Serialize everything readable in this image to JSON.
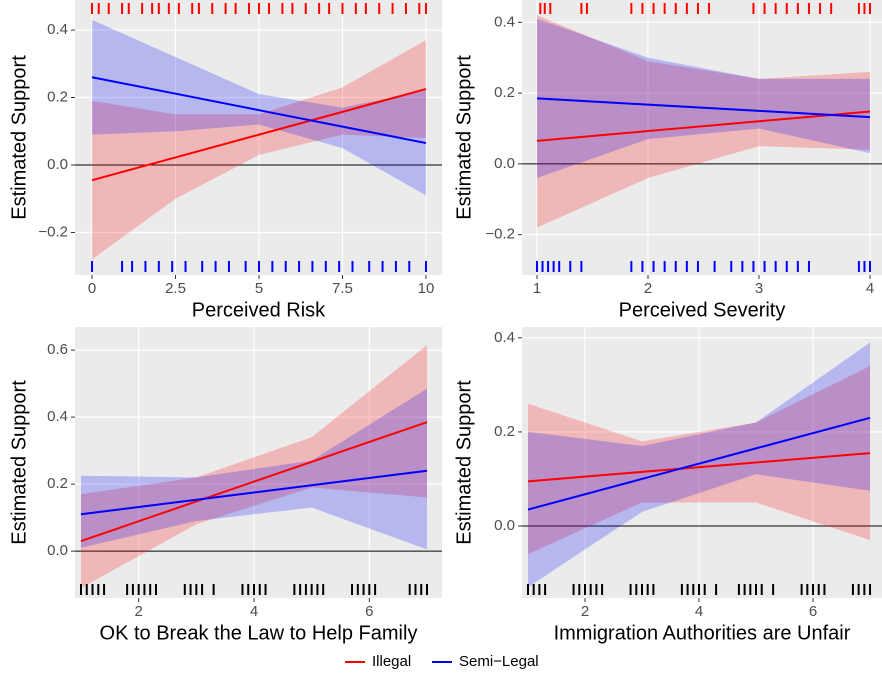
{
  "chart_data": [
    {
      "type": "line",
      "x_label": "Perceived Risk",
      "y_label": "Estimated Support",
      "x": [
        0,
        2.5,
        5,
        7.5,
        10
      ],
      "xlim": [
        -0.51,
        10.48
      ],
      "ylim": [
        -0.326,
        0.489
      ],
      "xticks": [
        0,
        2.5,
        5,
        7.5,
        10
      ],
      "yticks": [
        {
          "value": -0.2,
          "label": "−0.2"
        },
        {
          "value": 0,
          "label": "0.0"
        },
        0.2,
        0.4
      ],
      "hline": 0,
      "series": [
        {
          "name": "Illegal",
          "color": "#ff0000",
          "values": [
            -0.045,
            0.0225,
            0.09,
            0.1575,
            0.225
          ],
          "lower": [
            -0.28,
            -0.1,
            0.03,
            0.09,
            0.08
          ],
          "upper": [
            0.19,
            0.15,
            0.15,
            0.23,
            0.37
          ]
        },
        {
          "name": "Semi−Legal",
          "color": "#0000ff",
          "values": [
            0.26,
            0.2113,
            0.1625,
            0.1138,
            0.065
          ],
          "lower": [
            0.09,
            0.1,
            0.12,
            0.05,
            -0.09
          ],
          "upper": [
            0.43,
            0.32,
            0.21,
            0.17,
            0.22
          ]
        }
      ],
      "rugs": [
        {
          "position": "top",
          "color": "#ff0000",
          "x": [
            0,
            0.2,
            0.5,
            0.9,
            1.1,
            1.5,
            1.8,
            2.0,
            2.3,
            2.6,
            3.0,
            3.2,
            3.6,
            4.0,
            4.3,
            4.7,
            5.0,
            5.3,
            5.7,
            6.0,
            6.4,
            6.8,
            7.1,
            7.5,
            7.9,
            8.2,
            8.6,
            9.0,
            9.4,
            9.8,
            10
          ]
        },
        {
          "position": "bottom",
          "color": "#0000ff",
          "x": [
            0,
            0.9,
            1.2,
            1.6,
            2.0,
            2.4,
            2.8,
            3.3,
            3.7,
            4.1,
            4.6,
            5.0,
            5.4,
            5.8,
            6.2,
            6.6,
            7.0,
            7.4,
            7.8,
            8.3,
            8.7,
            9.1,
            9.5,
            10
          ]
        }
      ]
    },
    {
      "type": "line",
      "x_label": "Perceived Severity",
      "y_label": "Estimated Support",
      "x": [
        1,
        2,
        3,
        4
      ],
      "xlim": [
        0.865,
        4.108
      ],
      "ylim": [
        -0.314,
        0.463
      ],
      "xticks": [
        1,
        2,
        3,
        4
      ],
      "yticks": [
        {
          "value": -0.2,
          "label": "−0.2"
        },
        {
          "value": 0,
          "label": "0.0"
        },
        0.2,
        0.4
      ],
      "hline": 0,
      "series": [
        {
          "name": "Illegal",
          "color": "#ff0000",
          "values": [
            0.065,
            0.0927,
            0.1203,
            0.148
          ],
          "lower": [
            -0.18,
            -0.04,
            0.05,
            0.04
          ],
          "upper": [
            0.42,
            0.29,
            0.24,
            0.26
          ]
        },
        {
          "name": "Semi−Legal",
          "color": "#0000ff",
          "values": [
            0.185,
            0.1673,
            0.1497,
            0.132
          ],
          "lower": [
            -0.04,
            0.07,
            0.1,
            0.03
          ],
          "upper": [
            0.41,
            0.3,
            0.24,
            0.24
          ]
        }
      ],
      "rugs": [
        {
          "position": "top",
          "color": "#ff0000",
          "x": [
            1.03,
            1.07,
            1.12,
            1.4,
            1.45,
            1.85,
            1.95,
            2.05,
            2.15,
            2.25,
            2.35,
            2.45,
            2.55,
            2.95,
            3.05,
            3.15,
            3.25,
            3.35,
            3.45,
            3.55,
            3.65,
            3.9,
            3.95,
            4.0
          ]
        },
        {
          "position": "bottom",
          "color": "#0000ff",
          "x": [
            1.0,
            1.05,
            1.1,
            1.15,
            1.2,
            1.3,
            1.4,
            1.85,
            1.95,
            2.05,
            2.15,
            2.25,
            2.35,
            2.45,
            2.6,
            2.75,
            2.85,
            2.95,
            3.05,
            3.15,
            3.25,
            3.35,
            3.45,
            3.9,
            3.95,
            4.0
          ]
        }
      ]
    },
    {
      "type": "line",
      "x_label": "OK to Break the Law to Help Family",
      "y_label": "Estimated Support",
      "x": [
        1,
        3,
        5,
        7
      ],
      "xlim": [
        0.896,
        7.26
      ],
      "ylim": [
        -0.14,
        0.669
      ],
      "xticks": [
        2,
        4,
        6
      ],
      "yticks": [
        {
          "value": 0,
          "label": "0.0"
        },
        0.2,
        0.4,
        0.6
      ],
      "hline": 0,
      "series": [
        {
          "name": "Illegal",
          "color": "#ff0000",
          "values": [
            0.03,
            0.1483,
            0.2667,
            0.385
          ],
          "lower": [
            -0.11,
            0.08,
            0.19,
            0.16
          ],
          "upper": [
            0.17,
            0.22,
            0.34,
            0.615
          ]
        },
        {
          "name": "Semi−Legal",
          "color": "#0000ff",
          "values": [
            0.11,
            0.1533,
            0.1967,
            0.24
          ],
          "lower": [
            0.01,
            0.09,
            0.13,
            0.005
          ],
          "upper": [
            0.225,
            0.22,
            0.27,
            0.485
          ]
        }
      ],
      "rugs": [
        {
          "position": "bottom",
          "color": "#000000",
          "x": [
            1.0,
            1.1,
            1.2,
            1.3,
            1.4,
            1.8,
            1.9,
            2.0,
            2.1,
            2.2,
            2.3,
            2.8,
            2.9,
            3.0,
            3.1,
            3.3,
            3.8,
            3.9,
            4.0,
            4.1,
            4.2,
            4.7,
            4.8,
            4.9,
            5.0,
            5.1,
            5.2,
            5.7,
            5.8,
            5.9,
            6.0,
            6.1,
            6.7,
            6.8,
            6.9,
            7.0
          ]
        }
      ]
    },
    {
      "type": "line",
      "x_label": "Immigration Authorities are Unfair",
      "y_label": "Estimated Support",
      "x": [
        1,
        3,
        5,
        7
      ],
      "xlim": [
        0.895,
        7.21
      ],
      "ylim": [
        -0.153,
        0.423
      ],
      "xticks": [
        2,
        4,
        6
      ],
      "yticks": [
        {
          "value": 0,
          "label": "0.0"
        },
        0.2,
        0.4
      ],
      "hline": 0,
      "series": [
        {
          "name": "Illegal",
          "color": "#ff0000",
          "values": [
            0.095,
            0.115,
            0.135,
            0.155
          ],
          "lower": [
            -0.06,
            0.05,
            0.05,
            -0.03
          ],
          "upper": [
            0.26,
            0.18,
            0.22,
            0.34
          ]
        },
        {
          "name": "Semi−Legal",
          "color": "#0000ff",
          "values": [
            0.035,
            0.1,
            0.165,
            0.23
          ],
          "lower": [
            -0.13,
            0.03,
            0.11,
            0.075
          ],
          "upper": [
            0.2,
            0.17,
            0.22,
            0.39
          ]
        }
      ],
      "rugs": [
        {
          "position": "bottom",
          "color": "#000000",
          "x": [
            1.0,
            1.1,
            1.2,
            1.3,
            1.8,
            1.9,
            2.0,
            2.1,
            2.2,
            2.3,
            2.8,
            2.9,
            3.0,
            3.1,
            3.2,
            3.7,
            3.8,
            3.9,
            4.0,
            4.1,
            4.3,
            4.7,
            4.8,
            4.9,
            5.0,
            5.1,
            5.3,
            5.8,
            5.9,
            6.0,
            6.1,
            6.2,
            6.7,
            6.8,
            6.9,
            7.0
          ]
        }
      ]
    }
  ]
}
